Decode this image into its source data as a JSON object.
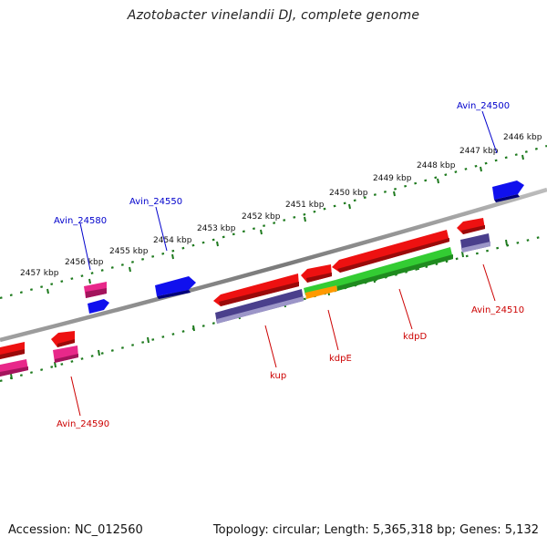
{
  "title": "Azotobacter vinelandii DJ, complete genome",
  "footer": {
    "accession": "Accession: NC_012560",
    "summary": "Topology: circular; Length: 5,365,318 bp; Genes: 5,132"
  },
  "scale": {
    "ticks": [
      {
        "label": "2457 kbp"
      },
      {
        "label": "2456 kbp"
      },
      {
        "label": "2455 kbp"
      },
      {
        "label": "2454 kbp"
      },
      {
        "label": "2453 kbp"
      },
      {
        "label": "2452 kbp"
      },
      {
        "label": "2451 kbp"
      },
      {
        "label": "2450 kbp"
      },
      {
        "label": "2449 kbp"
      },
      {
        "label": "2448 kbp"
      },
      {
        "label": "2447 kbp"
      },
      {
        "label": "2446 kbp"
      }
    ]
  },
  "labels": {
    "avin_24500": "Avin_24500",
    "avin_24550": "Avin_24550",
    "avin_24580": "Avin_24580",
    "avin_24510": "Avin_24510",
    "avin_24590": "Avin_24590",
    "kup": "kup",
    "kdpE": "kdpE",
    "kdpD": "kdpD"
  },
  "colors": {
    "backbone": "#8a8a8a",
    "tick_track": "#1e7a1e",
    "forward_label": "#0000cc",
    "reverse_label": "#cc0000",
    "cds_red": "#ee1111",
    "cds_pink": "#e8288a",
    "cds_blue": "#1010ee",
    "cds_purple": "#4a3f8c",
    "cds_green": "#33cc33",
    "cds_orange": "#ff9900"
  }
}
